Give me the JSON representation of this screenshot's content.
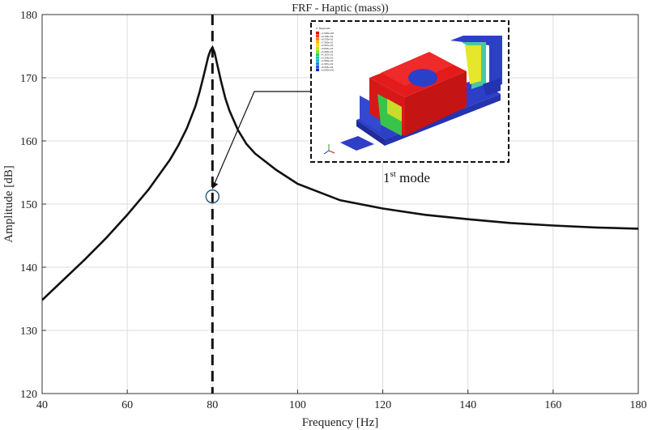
{
  "chart_data": {
    "type": "line",
    "title": "FRF - Haptic (mass))",
    "xlabel": "Frequency [Hz]",
    "ylabel": "Amplitude [dB]",
    "xlim": [
      40,
      180
    ],
    "ylim": [
      120,
      180
    ],
    "xticks": [
      "40",
      "60",
      "80",
      "100",
      "120",
      "140",
      "160",
      "180"
    ],
    "yticks": [
      "120",
      "130",
      "140",
      "150",
      "160",
      "170",
      "180"
    ],
    "grid": true,
    "series": [
      {
        "x": [
          40,
          45,
          50,
          55,
          60,
          65,
          70,
          72,
          74,
          76,
          77,
          78,
          79,
          79.5,
          80,
          80.5,
          81,
          82,
          83,
          84,
          86,
          88,
          90,
          95,
          100,
          110,
          120,
          130,
          140,
          150,
          160,
          170,
          180
        ],
        "y": [
          134.8,
          138.0,
          141.2,
          144.6,
          148.3,
          152.3,
          157.0,
          159.3,
          162.0,
          165.5,
          167.8,
          170.5,
          173.3,
          174.3,
          174.8,
          174.0,
          172.5,
          169.5,
          166.8,
          164.8,
          161.7,
          159.5,
          158.0,
          155.4,
          153.2,
          150.6,
          149.3,
          148.3,
          147.6,
          147.0,
          146.6,
          146.3,
          146.1
        ],
        "color": "#111111"
      }
    ],
    "resonance_line": {
      "x": 80,
      "style": "dashed"
    },
    "marker": {
      "x": 80,
      "y": 151.2
    },
    "annotation": {
      "caption_main": "1",
      "caption_sup": "st",
      "caption_rest": " mode"
    },
    "inset_legend": {
      "title": "U, Magnitude",
      "entries": [
        "+1.000e+00",
        "+9.166e-01",
        "+8.333e-01",
        "+7.500e-01",
        "+6.667e-01",
        "+5.834e-01",
        "+5.000e-01",
        "+4.167e-01",
        "+3.334e-01",
        "+2.500e-01",
        "+1.667e-01",
        "+8.334e-02",
        "+0.000e+00"
      ],
      "colors": [
        "#e4001b",
        "#ff3a1e",
        "#ff7d14",
        "#ffb400",
        "#f5dc00",
        "#c8e600",
        "#7de61e",
        "#2fd24b",
        "#14c88c",
        "#10b6c8",
        "#1a8ce6",
        "#2055e0",
        "#2020c8"
      ]
    },
    "colors": {
      "line": "#111111",
      "grid": "#dddddd",
      "marker": "#2a5c7a",
      "arrow": "#111111"
    }
  }
}
